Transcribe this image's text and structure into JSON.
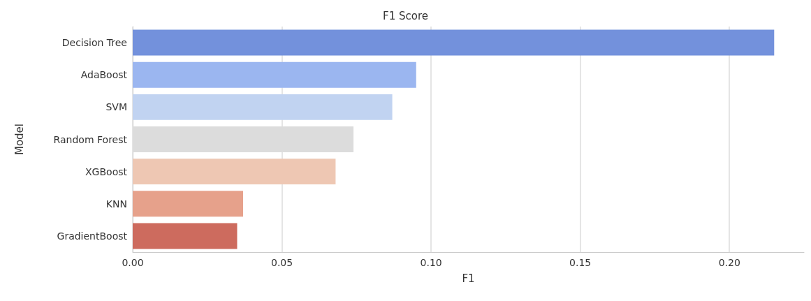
{
  "chart_data": {
    "type": "bar",
    "orientation": "horizontal",
    "title": "F1 Score",
    "xlabel": "F1",
    "ylabel": "Model",
    "categories": [
      "Decision Tree",
      "AdaBoost",
      "SVM",
      "Random Forest",
      "XGBoost",
      "KNN",
      "GradientBoost"
    ],
    "values": [
      0.215,
      0.095,
      0.087,
      0.074,
      0.068,
      0.037,
      0.035
    ],
    "colors": [
      "#7391dc",
      "#9bb6f0",
      "#c1d3f1",
      "#dcdcdc",
      "#eec7b3",
      "#e6a18b",
      "#cd6b5e"
    ],
    "xlim": [
      0,
      0.225
    ],
    "xticks": [
      {
        "value": 0,
        "label": "0.00"
      },
      {
        "value": 0.05,
        "label": "0.05"
      },
      {
        "value": 0.1,
        "label": "0.10"
      },
      {
        "value": 0.15,
        "label": "0.15"
      },
      {
        "value": 0.2,
        "label": "0.20"
      }
    ],
    "grid": "x"
  }
}
